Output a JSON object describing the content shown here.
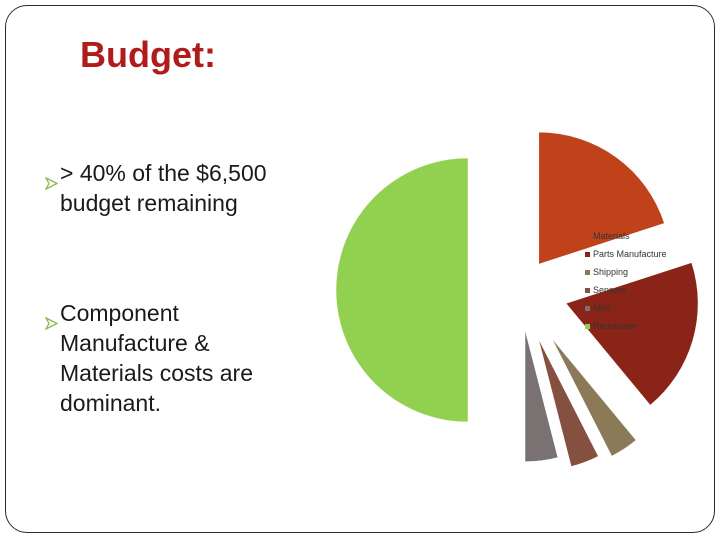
{
  "slide": {
    "title": "Budget:",
    "bullets": [
      {
        "lines": [
          "> 40% of the $6,500",
          "budget remaining"
        ]
      },
      {
        "lines": [
          "Component",
          "Manufacture &",
          "Materials costs are",
          "dominant."
        ]
      }
    ]
  },
  "chart_data": {
    "type": "pie",
    "exploded": true,
    "start_angle_deg": 0,
    "legend_position": "right",
    "slices": [
      {
        "label": "Materials",
        "value": 20,
        "color": "#c0421a"
      },
      {
        "label": "Parts Manufacture",
        "value": 19,
        "color": "#8b2418"
      },
      {
        "label": "Shipping",
        "value": 3.5,
        "color": "#8b7a58"
      },
      {
        "label": "Sensors",
        "value": 3.5,
        "color": "#85503f"
      },
      {
        "label": "Misc",
        "value": 4,
        "color": "#7a7272"
      },
      {
        "label": "Remainder",
        "value": 50,
        "color": "#92d050"
      }
    ]
  }
}
